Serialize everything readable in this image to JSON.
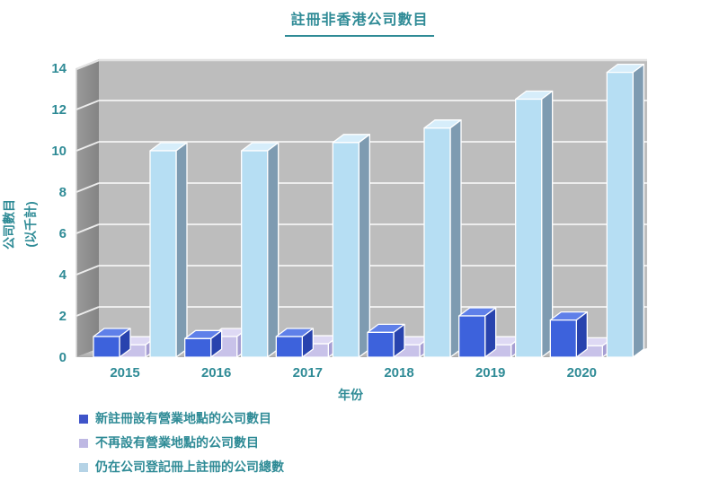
{
  "title": "註冊非香港公司數目",
  "axes": {
    "xlabel": "年份",
    "ylabel_line1": "公司數目",
    "ylabel_line2": "(以千計)"
  },
  "legend": [
    {
      "label": "新註冊設有營業地點的公司數目",
      "color": "#3F54C9"
    },
    {
      "label": "不再設有營業地點的公司數目",
      "color": "#BEB8E3"
    },
    {
      "label": "仍在公司登記冊上註冊的公司總數",
      "color": "#B5D3E6"
    }
  ],
  "colors": {
    "teal_text": "#2F8B96",
    "back_wall": "#BDBDBD",
    "left_wall_light": "#9A9A9A",
    "left_wall_dark": "#848484",
    "floor_light": "#D8D8D8",
    "floor_dark": "#ABABAB",
    "gridline": "#EDEDED",
    "bars": {
      "blue": {
        "front": "#3D62DC",
        "top": "#5F80E9",
        "side": "#2843AE"
      },
      "lavender": {
        "front": "#C8C2E9",
        "top": "#DED9F4",
        "side": "#A69ED2"
      },
      "lightblue": {
        "front": "#B6DEF3",
        "top": "#D6EDFA",
        "side": "#7E9BB1"
      }
    }
  },
  "chart_data": {
    "type": "bar",
    "style": "3d-grouped-bars",
    "categories": [
      "2015",
      "2016",
      "2017",
      "2018",
      "2019",
      "2020"
    ],
    "series": [
      {
        "name": "新註冊設有營業地點的公司數目",
        "color_key": "blue",
        "values": [
          1.0,
          0.9,
          1.0,
          1.2,
          2.0,
          1.8
        ]
      },
      {
        "name": "不再設有營業地點的公司數目",
        "color_key": "lavender",
        "values": [
          0.6,
          1.0,
          0.65,
          0.6,
          0.6,
          0.55
        ]
      },
      {
        "name": "仍在公司登記冊上註冊的公司總數",
        "color_key": "lightblue",
        "values": [
          10.0,
          10.0,
          10.4,
          11.1,
          12.5,
          13.8
        ]
      }
    ],
    "title": "註冊非香港公司數目",
    "xlabel": "年份",
    "ylabel": "公司數目 (以千計)",
    "ylim": [
      0,
      14
    ],
    "ytick_step": 2,
    "grid": true,
    "legend_position": "bottom-left"
  }
}
